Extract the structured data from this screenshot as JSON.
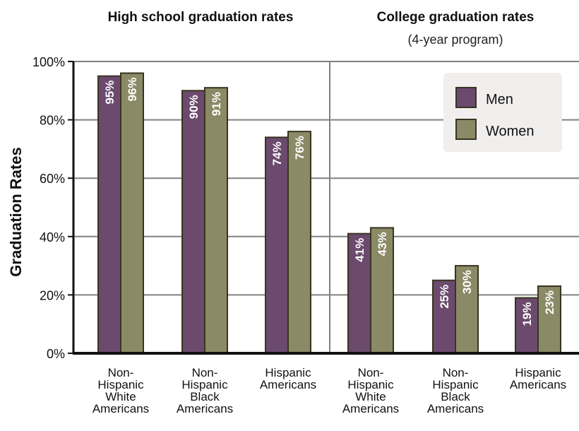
{
  "chart_data": {
    "type": "bar",
    "ylabel": "Graduation Rates",
    "ylim": [
      0,
      100
    ],
    "yticks": [
      0,
      20,
      40,
      60,
      80,
      100
    ],
    "ytick_labels": [
      "0%",
      "20%",
      "40%",
      "60%",
      "80%",
      "100%"
    ],
    "grid": true,
    "legend_position": "top-right",
    "panels": [
      {
        "title": "High school graduation rates",
        "subtitle": "",
        "categories": [
          [
            "Non-",
            "Hispanic",
            "White",
            "Americans"
          ],
          [
            "Non-",
            "Hispanic",
            "Black",
            "Americans"
          ],
          [
            "Hispanic",
            "Americans"
          ]
        ],
        "series": [
          {
            "name": "Men",
            "values": [
              95,
              90,
              74
            ],
            "labels": [
              "95%",
              "90%",
              "74%"
            ]
          },
          {
            "name": "Women",
            "values": [
              96,
              91,
              76
            ],
            "labels": [
              "96%",
              "91%",
              "76%"
            ]
          }
        ]
      },
      {
        "title": "College graduation rates",
        "subtitle": "(4-year program)",
        "categories": [
          [
            "Non-",
            "Hispanic",
            "White",
            "Americans"
          ],
          [
            "Non-",
            "Hispanic",
            "Black",
            "Americans"
          ],
          [
            "Hispanic",
            "Americans"
          ]
        ],
        "series": [
          {
            "name": "Men",
            "values": [
              41,
              25,
              19
            ],
            "labels": [
              "41%",
              "25%",
              "19%"
            ]
          },
          {
            "name": "Women",
            "values": [
              43,
              30,
              23
            ],
            "labels": [
              "43%",
              "30%",
              "23%"
            ]
          }
        ]
      }
    ],
    "legend": [
      {
        "name": "Men",
        "color": "#6b4a6e"
      },
      {
        "name": "Women",
        "color": "#8a8a66"
      }
    ],
    "colors": {
      "men": "#6b4a6e",
      "women": "#8a8a66",
      "bar_outline": "#3a3420",
      "grid": "#808080",
      "axis": "#111111",
      "legend_bg": "#f1efee"
    }
  }
}
